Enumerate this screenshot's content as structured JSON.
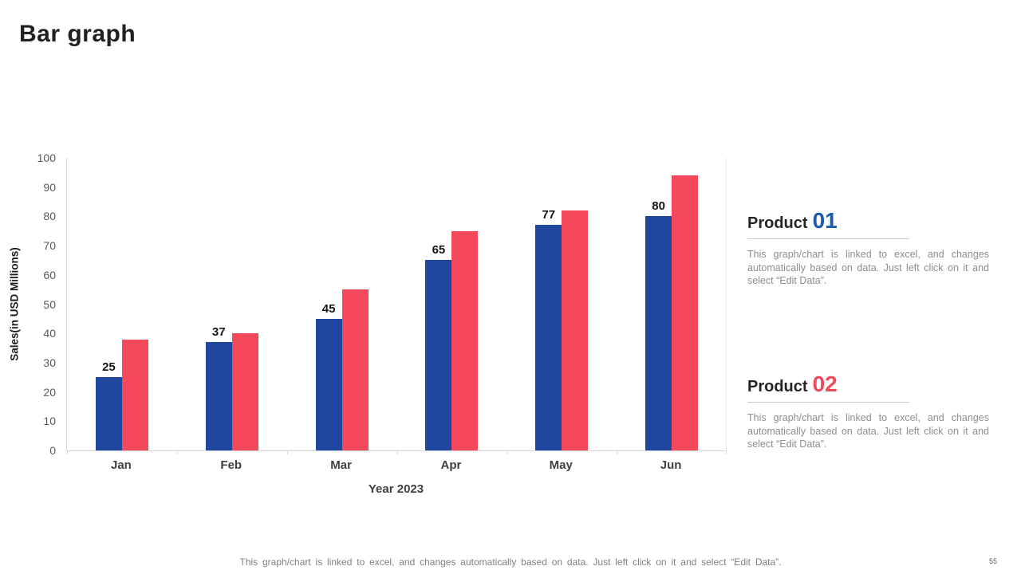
{
  "slide": {
    "title": "Bar graph",
    "page_number": "55",
    "footer": "This graph/chart is linked to excel, and changes automatically based on data. Just left click on it and select “Edit Data”."
  },
  "chart_data": {
    "type": "bar",
    "title": "",
    "categories": [
      "Jan",
      "Feb",
      "Mar",
      "Apr",
      "May",
      "Jun"
    ],
    "series": [
      {
        "name": "Product 01",
        "color": "#1f479d",
        "values": [
          25,
          37,
          45,
          65,
          77,
          80
        ],
        "data_labels": true
      },
      {
        "name": "Product 02",
        "color": "#f4495b",
        "values": [
          38,
          40,
          55,
          75,
          82,
          94
        ],
        "data_labels": false
      }
    ],
    "xlabel": "Year 2023",
    "ylabel": "Sales(in USD Millions)",
    "ylim": [
      0,
      100
    ],
    "ytick_step": 10,
    "grid": false,
    "legend": "none"
  },
  "panels": [
    {
      "label": "Product",
      "number": "01",
      "number_color": "#1e5bad",
      "body": "This graph/chart is linked to excel, and changes automatically based on data. Just left click on it and select “Edit Data”."
    },
    {
      "label": "Product",
      "number": "02",
      "number_color": "#ef4a5c",
      "body": "This graph/chart is linked to excel, and changes automatically based on data. Just left click on it and select “Edit Data”."
    }
  ]
}
